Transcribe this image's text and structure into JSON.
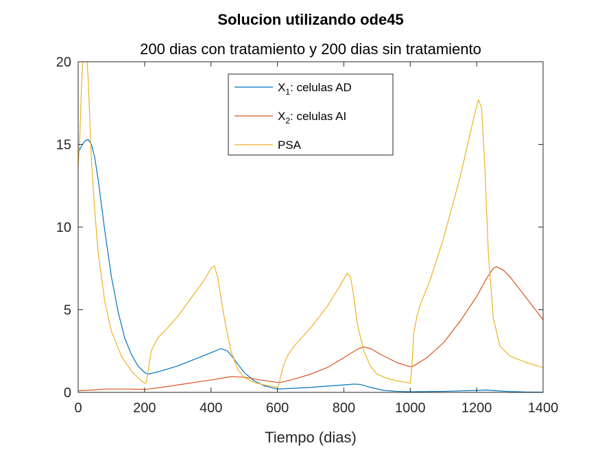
{
  "chart_data": {
    "type": "line",
    "title": "Solucion utilizando ode45",
    "subtitle": "200 dias con tratamiento y 200 dias sin tratamiento",
    "xlabel": "Tiempo (dias)",
    "ylabel": "",
    "xlim": [
      0,
      1400
    ],
    "ylim": [
      0,
      20
    ],
    "xticks": [
      0,
      200,
      400,
      600,
      800,
      1000,
      1200,
      1400
    ],
    "yticks": [
      0,
      5,
      10,
      15,
      20
    ],
    "grid": false,
    "legend_position": "top-center",
    "series": [
      {
        "name": "X_1: celulas AD",
        "legend_main": "X",
        "legend_sub": "1",
        "legend_rest": ": celulas AD",
        "color": "#0072BD",
        "x": [
          0,
          10,
          20,
          30,
          40,
          50,
          60,
          80,
          100,
          120,
          140,
          160,
          180,
          200,
          210,
          250,
          300,
          350,
          400,
          430,
          450,
          470,
          500,
          530,
          560,
          590,
          600,
          650,
          700,
          750,
          800,
          830,
          850,
          880,
          920,
          960,
          1000,
          1050,
          1100,
          1150,
          1200,
          1230,
          1260,
          1300,
          1350,
          1400
        ],
        "y": [
          14.5,
          14.9,
          15.2,
          15.3,
          15.0,
          14.2,
          12.9,
          9.8,
          7.0,
          4.9,
          3.3,
          2.3,
          1.6,
          1.2,
          1.1,
          1.3,
          1.6,
          2.0,
          2.4,
          2.65,
          2.5,
          2.0,
          1.2,
          0.7,
          0.4,
          0.25,
          0.2,
          0.25,
          0.3,
          0.38,
          0.45,
          0.5,
          0.48,
          0.3,
          0.12,
          0.06,
          0.04,
          0.05,
          0.06,
          0.09,
          0.12,
          0.14,
          0.1,
          0.05,
          0.02,
          0.01
        ]
      },
      {
        "name": "X_2: celulas AI",
        "legend_main": "X",
        "legend_sub": "2",
        "legend_rest": ": celulas AI",
        "color": "#D95319",
        "x": [
          0,
          50,
          80,
          100,
          150,
          200,
          210,
          250,
          300,
          350,
          400,
          430,
          460,
          500,
          550,
          600,
          610,
          650,
          700,
          750,
          800,
          840,
          860,
          880,
          920,
          960,
          1000,
          1010,
          1050,
          1100,
          1150,
          1200,
          1230,
          1250,
          1260,
          1280,
          1300,
          1350,
          1400
        ],
        "y": [
          0.1,
          0.15,
          0.2,
          0.2,
          0.2,
          0.18,
          0.2,
          0.3,
          0.45,
          0.6,
          0.75,
          0.85,
          0.95,
          0.92,
          0.75,
          0.6,
          0.6,
          0.8,
          1.1,
          1.5,
          2.1,
          2.6,
          2.75,
          2.65,
          2.2,
          1.8,
          1.55,
          1.6,
          2.1,
          3.0,
          4.3,
          5.8,
          6.9,
          7.5,
          7.6,
          7.4,
          7.0,
          5.7,
          4.4
        ]
      },
      {
        "name": "PSA",
        "legend_main": "PSA",
        "legend_sub": "",
        "legend_rest": "",
        "color": "#EDB120",
        "x": [
          0,
          5,
          10,
          15,
          20,
          25,
          30,
          35,
          40,
          50,
          60,
          80,
          100,
          130,
          160,
          190,
          200,
          205,
          210,
          215,
          220,
          240,
          260,
          300,
          340,
          380,
          400,
          410,
          420,
          440,
          460,
          480,
          500,
          530,
          560,
          590,
          600,
          605,
          610,
          620,
          630,
          650,
          700,
          750,
          790,
          810,
          820,
          830,
          840,
          860,
          880,
          900,
          930,
          960,
          990,
          1000,
          1005,
          1010,
          1020,
          1030,
          1060,
          1100,
          1150,
          1190,
          1205,
          1215,
          1225,
          1235,
          1250,
          1270,
          1300,
          1350,
          1400
        ],
        "y": [
          13.6,
          15.5,
          18.5,
          20.5,
          21.0,
          20.5,
          19.0,
          16.5,
          14.0,
          11.0,
          8.5,
          5.5,
          3.7,
          2.2,
          1.3,
          0.7,
          0.55,
          0.6,
          1.2,
          1.9,
          2.5,
          3.3,
          3.7,
          4.6,
          5.7,
          6.8,
          7.5,
          7.65,
          7.0,
          4.5,
          2.5,
          1.4,
          0.9,
          0.6,
          0.45,
          0.35,
          0.3,
          0.5,
          1.0,
          1.7,
          2.2,
          2.8,
          3.9,
          5.2,
          6.5,
          7.2,
          7.0,
          5.8,
          4.2,
          2.5,
          1.6,
          1.1,
          0.85,
          0.7,
          0.6,
          0.55,
          1.5,
          3.5,
          4.6,
          5.3,
          6.8,
          9.3,
          13.0,
          16.5,
          17.7,
          17.2,
          13.5,
          8.5,
          4.5,
          2.8,
          2.2,
          1.8,
          1.5
        ]
      }
    ]
  }
}
